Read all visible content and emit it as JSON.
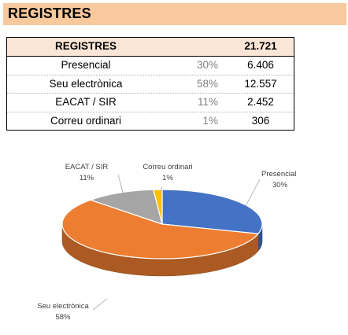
{
  "banner": {
    "title": "REGISTRES"
  },
  "table": {
    "header": {
      "label": "REGISTRES",
      "total": "21.721"
    },
    "rows": [
      {
        "label": "Presencial",
        "pct": "30%",
        "value": "6.406"
      },
      {
        "label": "Seu electrònica",
        "pct": "58%",
        "value": "12.557"
      },
      {
        "label": "EACAT / SIR",
        "pct": "11%",
        "value": "2.452"
      },
      {
        "label": "Correu ordinari",
        "pct": "1%",
        "value": "306"
      }
    ]
  },
  "chart_data": {
    "type": "pie",
    "style": "3d",
    "total": 21721,
    "slices": [
      {
        "label": "Presencial",
        "value": 6406,
        "percent": "30%",
        "color": "#4472c4"
      },
      {
        "label": "Seu electrònica",
        "value": 12557,
        "percent": "58%",
        "color": "#ed7d31"
      },
      {
        "label": "EACAT / SIR",
        "value": 2452,
        "percent": "11%",
        "color": "#a5a5a5"
      },
      {
        "label": "Correu ordinari",
        "value": 306,
        "percent": "1%",
        "color": "#ffc000"
      }
    ],
    "data_labels": true
  }
}
